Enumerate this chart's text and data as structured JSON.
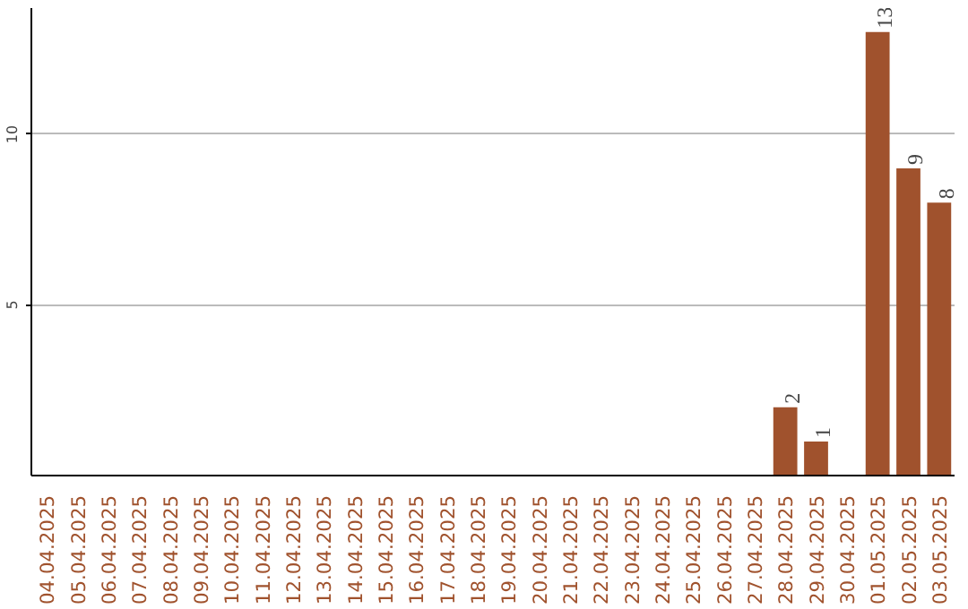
{
  "chart_data": {
    "type": "bar",
    "categories": [
      "04.04.2025",
      "05.04.2025",
      "06.04.2025",
      "07.04.2025",
      "08.04.2025",
      "09.04.2025",
      "10.04.2025",
      "11.04.2025",
      "12.04.2025",
      "13.04.2025",
      "14.04.2025",
      "15.04.2025",
      "16.04.2025",
      "17.04.2025",
      "18.04.2025",
      "19.04.2025",
      "20.04.2025",
      "21.04.2025",
      "22.04.2025",
      "23.04.2025",
      "24.04.2025",
      "25.04.2025",
      "26.04.2025",
      "27.04.2025",
      "28.04.2025",
      "29.04.2025",
      "30.04.2025",
      "01.05.2025",
      "02.05.2025",
      "03.05.2025"
    ],
    "values": [
      0,
      0,
      0,
      0,
      0,
      0,
      0,
      0,
      0,
      0,
      0,
      0,
      0,
      0,
      0,
      0,
      0,
      0,
      0,
      0,
      0,
      0,
      0,
      0,
      2,
      1,
      0,
      13,
      9,
      8
    ],
    "value_labels": [
      null,
      null,
      null,
      null,
      null,
      null,
      null,
      null,
      null,
      null,
      null,
      null,
      null,
      null,
      null,
      null,
      null,
      null,
      null,
      null,
      null,
      null,
      null,
      null,
      "2",
      "1",
      null,
      "13",
      "9",
      "8"
    ],
    "color": "#a0522d",
    "ylim": [
      0,
      13.7
    ],
    "yticks": [
      5,
      10
    ],
    "grid": "y"
  }
}
